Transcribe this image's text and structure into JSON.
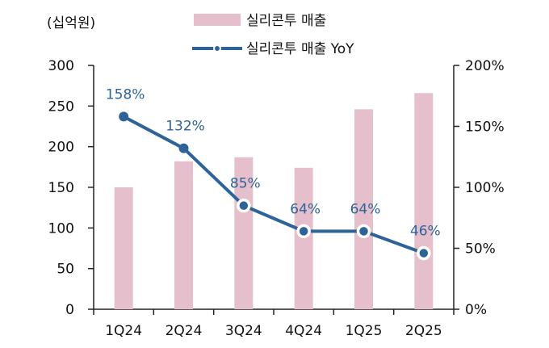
{
  "chart_data": {
    "type": "bar+line",
    "unit_label": "(십억원)",
    "categories": [
      "1Q24",
      "2Q24",
      "3Q24",
      "4Q24",
      "1Q25",
      "2Q25"
    ],
    "series": [
      {
        "name": "실리콘투 매출",
        "type": "bar",
        "axis": "left",
        "values": [
          150,
          182,
          187,
          174,
          246,
          266
        ],
        "color": "#e5bfcb"
      },
      {
        "name": "실리콘투 매출 YoY",
        "type": "line",
        "axis": "right",
        "values": [
          158,
          132,
          85,
          64,
          64,
          46
        ],
        "labels": [
          "158%",
          "132%",
          "85%",
          "64%",
          "64%",
          "46%"
        ],
        "color": "#2e6399"
      }
    ],
    "y_left": {
      "min": 0,
      "max": 300,
      "ticks": [
        0,
        50,
        100,
        150,
        200,
        250,
        300
      ]
    },
    "y_right": {
      "min": 0,
      "max": 200,
      "ticks": [
        "0%",
        "50%",
        "100%",
        "150%",
        "200%"
      ]
    },
    "grid": false,
    "legend_position": "top"
  }
}
